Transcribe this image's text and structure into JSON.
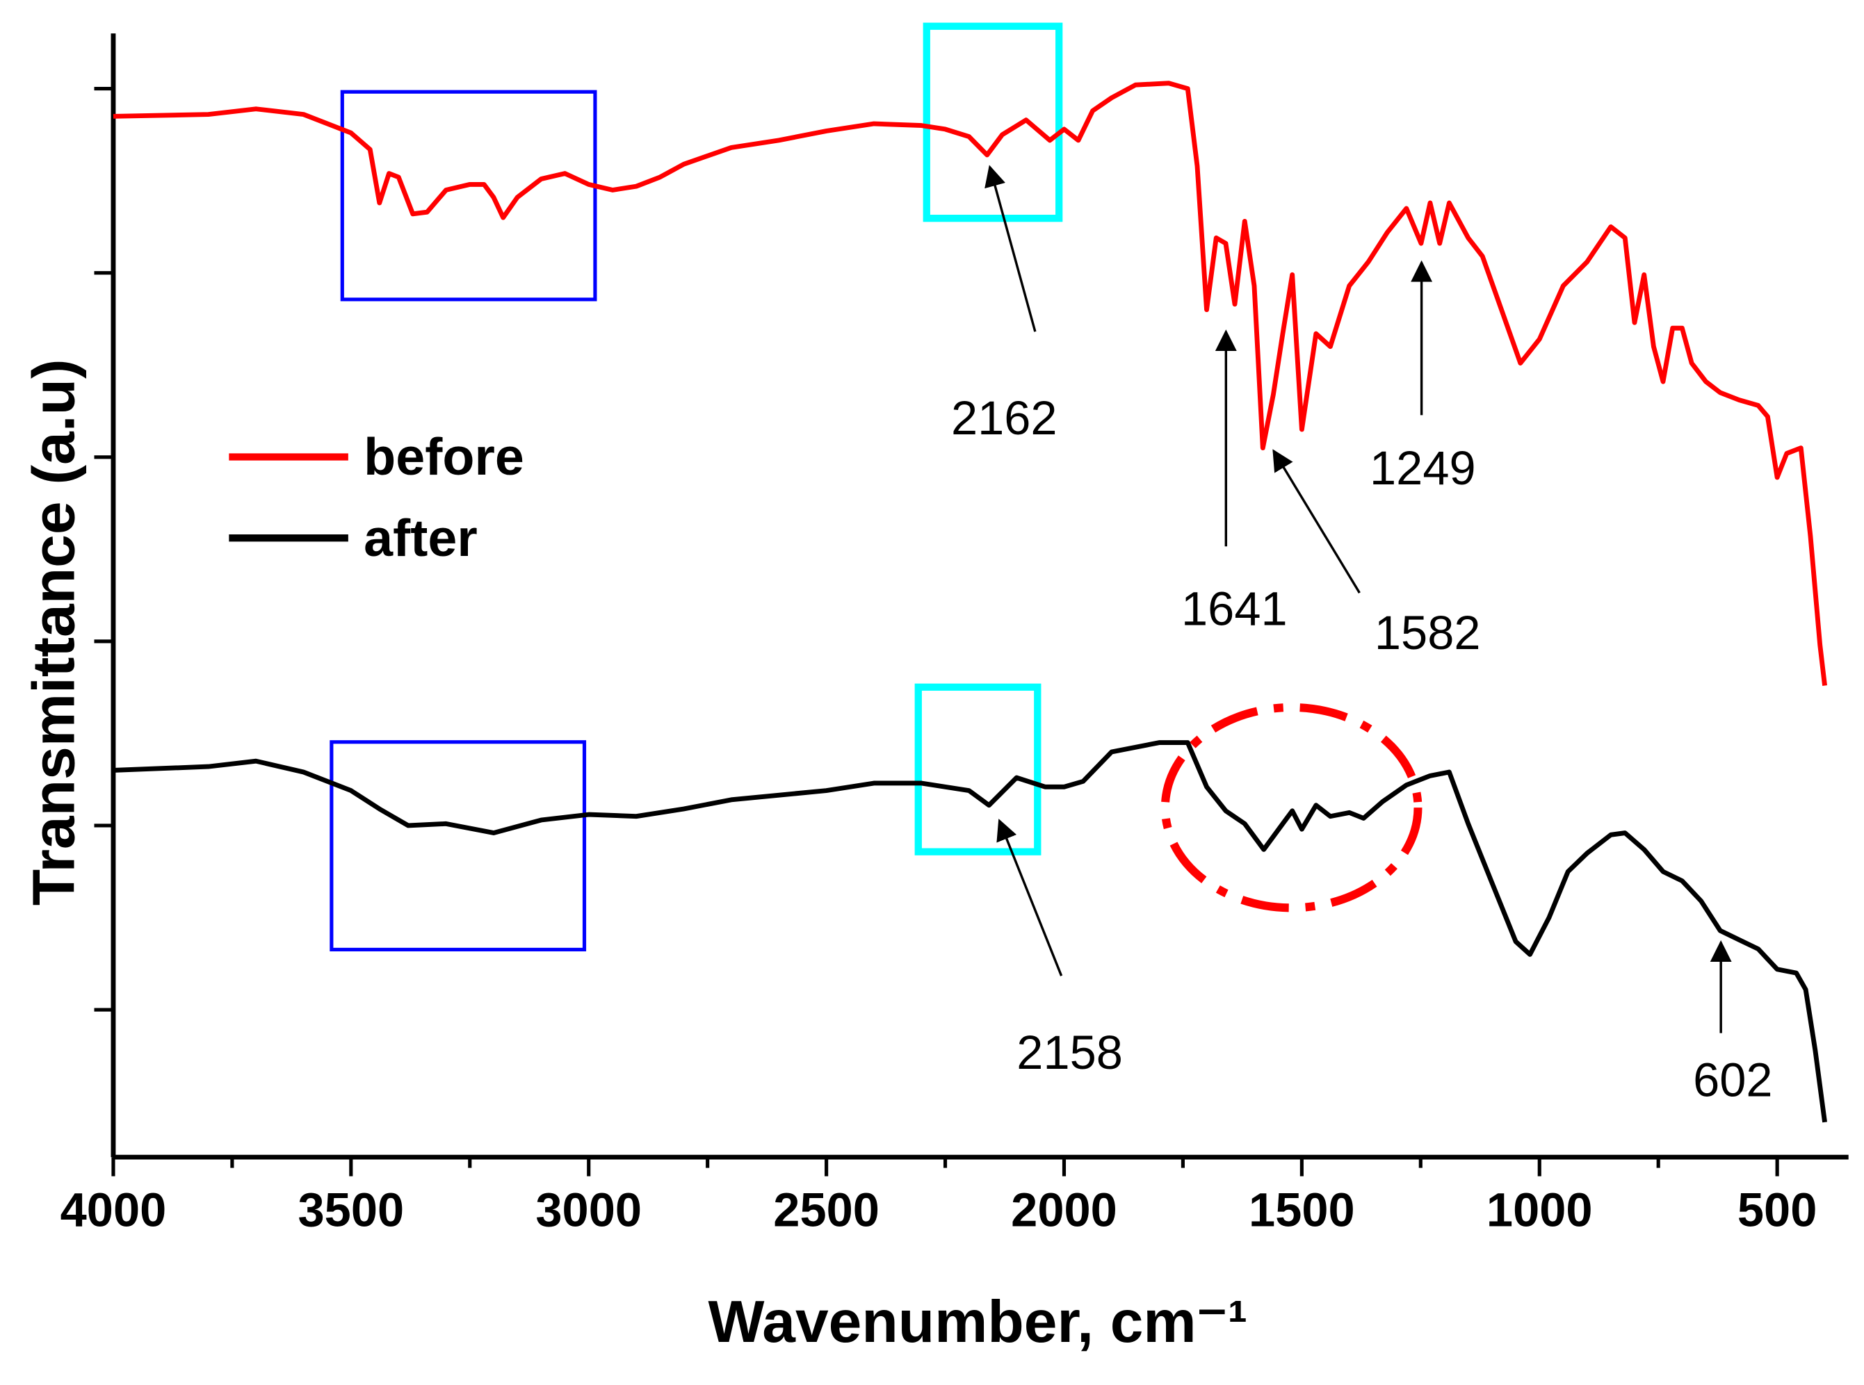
{
  "chart_data": {
    "type": "line",
    "xlabel": "Wavenumber, cm⁻¹",
    "ylabel": "Transmittance (a.u)",
    "xlim": [
      4000,
      350
    ],
    "xticks": [
      4000,
      3500,
      3000,
      2500,
      2000,
      1500,
      1000,
      500
    ],
    "xminorticks": [
      3750,
      3250,
      2750,
      2250,
      1750,
      1250,
      750
    ],
    "ylim": [
      0.2,
      6.3
    ],
    "yticks": [
      1,
      2,
      3,
      4,
      5,
      6
    ],
    "legend": "upper left",
    "series": [
      {
        "name": "before",
        "color": "#ff0000",
        "x": [
          4000,
          3800,
          3700,
          3600,
          3500,
          3460,
          3440,
          3420,
          3400,
          3370,
          3340,
          3300,
          3250,
          3220,
          3200,
          3180,
          3150,
          3100,
          3050,
          3000,
          2950,
          2900,
          2850,
          2800,
          2700,
          2600,
          2500,
          2400,
          2300,
          2250,
          2200,
          2162,
          2130,
          2080,
          2030,
          2000,
          1970,
          1940,
          1900,
          1850,
          1780,
          1740,
          1720,
          1700,
          1680,
          1660,
          1641,
          1620,
          1600,
          1582,
          1560,
          1540,
          1520,
          1500,
          1470,
          1440,
          1400,
          1360,
          1320,
          1280,
          1249,
          1230,
          1210,
          1190,
          1150,
          1120,
          1080,
          1040,
          1000,
          950,
          900,
          850,
          820,
          800,
          780,
          760,
          740,
          720,
          700,
          680,
          650,
          620,
          580,
          540,
          520,
          500,
          480,
          450,
          430,
          410,
          400
        ],
        "values": [
          5.85,
          5.86,
          5.89,
          5.86,
          5.76,
          5.67,
          5.38,
          5.54,
          5.52,
          5.32,
          5.33,
          5.45,
          5.48,
          5.48,
          5.41,
          5.3,
          5.41,
          5.51,
          5.54,
          5.48,
          5.45,
          5.47,
          5.52,
          5.59,
          5.68,
          5.72,
          5.77,
          5.81,
          5.8,
          5.78,
          5.74,
          5.64,
          5.75,
          5.83,
          5.72,
          5.78,
          5.72,
          5.88,
          5.95,
          6.02,
          6.03,
          6.0,
          5.58,
          4.8,
          5.19,
          5.16,
          4.83,
          5.28,
          4.93,
          4.05,
          4.34,
          4.67,
          4.99,
          4.15,
          4.67,
          4.6,
          4.93,
          5.06,
          5.22,
          5.35,
          5.16,
          5.38,
          5.16,
          5.38,
          5.19,
          5.09,
          4.8,
          4.51,
          4.64,
          4.93,
          5.06,
          5.25,
          5.19,
          4.73,
          4.99,
          4.6,
          4.41,
          4.7,
          4.7,
          4.51,
          4.41,
          4.35,
          4.31,
          4.28,
          4.22,
          3.89,
          4.02,
          4.05,
          3.57,
          2.98,
          2.76
        ]
      },
      {
        "name": "after",
        "color": "#000000",
        "x": [
          4000,
          3800,
          3700,
          3600,
          3500,
          3440,
          3380,
          3300,
          3200,
          3100,
          3000,
          2900,
          2800,
          2700,
          2500,
          2400,
          2300,
          2200,
          2158,
          2100,
          2040,
          2000,
          1960,
          1900,
          1800,
          1740,
          1700,
          1660,
          1620,
          1580,
          1540,
          1520,
          1500,
          1470,
          1440,
          1400,
          1370,
          1330,
          1280,
          1230,
          1190,
          1150,
          1100,
          1050,
          1020,
          980,
          940,
          900,
          850,
          820,
          780,
          740,
          700,
          660,
          620,
          580,
          540,
          500,
          460,
          440,
          420,
          400
        ],
        "values": [
          2.3,
          2.32,
          2.35,
          2.29,
          2.19,
          2.09,
          2.0,
          2.01,
          1.96,
          2.03,
          2.06,
          2.05,
          2.09,
          2.14,
          2.19,
          2.23,
          2.23,
          2.19,
          2.11,
          2.26,
          2.21,
          2.21,
          2.24,
          2.4,
          2.45,
          2.45,
          2.21,
          2.08,
          2.01,
          1.87,
          2.01,
          2.08,
          1.98,
          2.11,
          2.05,
          2.07,
          2.04,
          2.13,
          2.22,
          2.27,
          2.29,
          2.01,
          1.69,
          1.37,
          1.3,
          1.5,
          1.75,
          1.85,
          1.95,
          1.96,
          1.87,
          1.75,
          1.7,
          1.59,
          1.43,
          1.38,
          1.33,
          1.22,
          1.2,
          1.11,
          0.78,
          0.39
        ]
      }
    ],
    "annotations": [
      "2162",
      "1641",
      "1582",
      "1249",
      "2158",
      "602"
    ]
  }
}
